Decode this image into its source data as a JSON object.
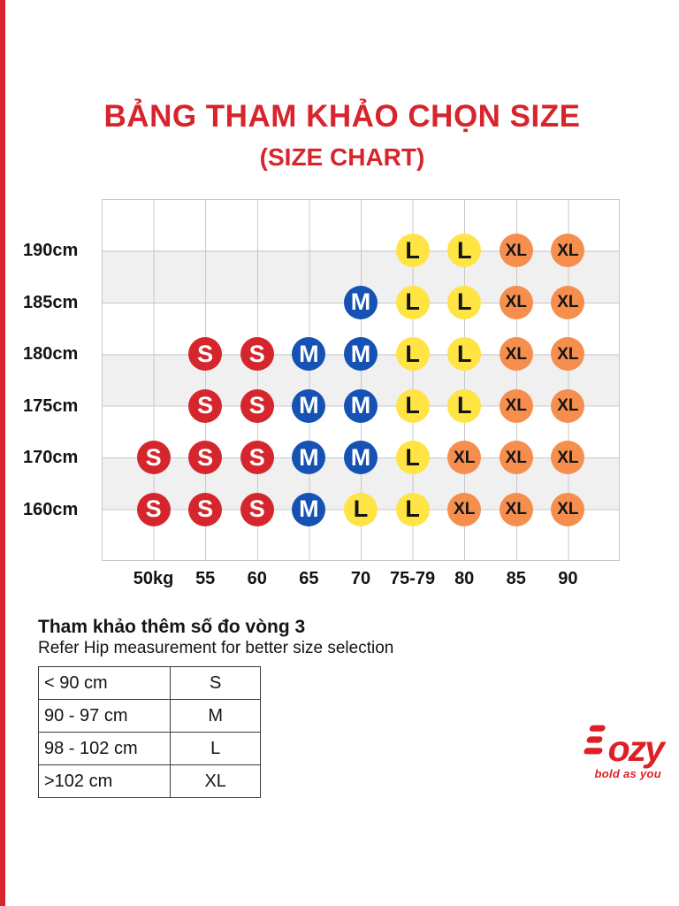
{
  "page": {
    "title": "BẢNG THAM KHẢO CHỌN SIZE",
    "subtitle": "(SIZE CHART)"
  },
  "colors": {
    "accent_red": "#D8242C",
    "logo_red": "#DF1F26",
    "grid_line": "#C8C8C8",
    "row_stripe": "#F0F0F0"
  },
  "chart_data": {
    "type": "scatter",
    "title": "BẢNG THAM KHẢO CHỌN SIZE (SIZE CHART)",
    "x_categories": [
      "50kg",
      "55",
      "60",
      "65",
      "70",
      "75-79",
      "80",
      "85",
      "90"
    ],
    "y_categories": [
      "190cm",
      "185cm",
      "180cm",
      "175cm",
      "170cm",
      "160cm"
    ],
    "grid": true,
    "striped_row_bands": [
      1,
      3,
      5
    ],
    "series": [
      {
        "height": "190cm",
        "sizes": [
          null,
          null,
          null,
          null,
          null,
          "L",
          "L",
          "XL",
          "XL"
        ]
      },
      {
        "height": "185cm",
        "sizes": [
          null,
          null,
          null,
          null,
          "M",
          "L",
          "L",
          "XL",
          "XL"
        ]
      },
      {
        "height": "180cm",
        "sizes": [
          null,
          "S",
          "S",
          "M",
          "M",
          "L",
          "L",
          "XL",
          "XL"
        ]
      },
      {
        "height": "175cm",
        "sizes": [
          null,
          "S",
          "S",
          "M",
          "M",
          "L",
          "L",
          "XL",
          "XL"
        ]
      },
      {
        "height": "170cm",
        "sizes": [
          "S",
          "S",
          "S",
          "M",
          "M",
          "L",
          "XL",
          "XL",
          "XL"
        ]
      },
      {
        "height": "160cm",
        "sizes": [
          "S",
          "S",
          "S",
          "M",
          "L",
          "L",
          "XL",
          "XL",
          "XL"
        ]
      }
    ],
    "size_colors": {
      "S": {
        "bg": "#D5262D",
        "fg": "#FFFFFF"
      },
      "M": {
        "bg": "#1552B4",
        "fg": "#FFFFFF"
      },
      "L": {
        "bg": "#FFE443",
        "fg": "#141414"
      },
      "XL": {
        "bg": "#F68E4E",
        "fg": "#141414"
      }
    }
  },
  "hip_table": {
    "heading_vi": "Tham khảo thêm số đo vòng 3",
    "heading_en": "Refer Hip measurement for better size selection",
    "rows": [
      {
        "range": "< 90 cm",
        "size": "S"
      },
      {
        "range": "90 - 97 cm",
        "size": "M"
      },
      {
        "range": "98 - 102 cm",
        "size": "L"
      },
      {
        "range": ">102 cm",
        "size": "XL"
      }
    ]
  },
  "logo": {
    "brand": "Bozy",
    "suffix": "ozy",
    "tagline": "bold as you"
  }
}
